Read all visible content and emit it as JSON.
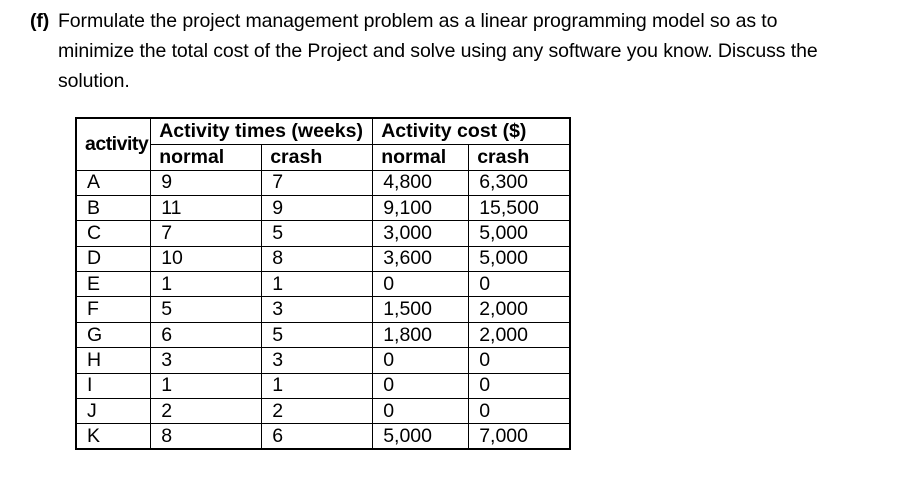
{
  "colors": {
    "background": "#ffffff",
    "text": "#000000",
    "table_border": "#000000"
  },
  "problem": {
    "label": "(f)",
    "lines": [
      "Formulate the project management problem as a linear programming model so as to",
      "minimize the total cost of the Project and solve using any software you know. Discuss the",
      "solution."
    ]
  },
  "table": {
    "corner_header": "activity",
    "group_headers": [
      "Activity times (weeks)",
      "Activity cost ($)"
    ],
    "sub_headers": [
      "normal",
      "crash",
      "normal",
      "crash"
    ],
    "rows": [
      {
        "activity": "A",
        "time_normal": "9",
        "time_crash": "7",
        "cost_normal": "4,800",
        "cost_crash": "6,300"
      },
      {
        "activity": "B",
        "time_normal": "11",
        "time_crash": "9",
        "cost_normal": "9,100",
        "cost_crash": "15,500"
      },
      {
        "activity": "C",
        "time_normal": "7",
        "time_crash": "5",
        "cost_normal": "3,000",
        "cost_crash": "5,000"
      },
      {
        "activity": "D",
        "time_normal": "10",
        "time_crash": "8",
        "cost_normal": "3,600",
        "cost_crash": "5,000"
      },
      {
        "activity": "E",
        "time_normal": "1",
        "time_crash": "1",
        "cost_normal": "0",
        "cost_crash": "0"
      },
      {
        "activity": "F",
        "time_normal": "5",
        "time_crash": "3",
        "cost_normal": "1,500",
        "cost_crash": "2,000"
      },
      {
        "activity": "G",
        "time_normal": "6",
        "time_crash": "5",
        "cost_normal": "1,800",
        "cost_crash": "2,000"
      },
      {
        "activity": "H",
        "time_normal": "3",
        "time_crash": "3",
        "cost_normal": "0",
        "cost_crash": "0"
      },
      {
        "activity": "I",
        "time_normal": "1",
        "time_crash": "1",
        "cost_normal": "0",
        "cost_crash": "0"
      },
      {
        "activity": "J",
        "time_normal": "2",
        "time_crash": "2",
        "cost_normal": "0",
        "cost_crash": "0"
      },
      {
        "activity": "K",
        "time_normal": "8",
        "time_crash": "6",
        "cost_normal": "5,000",
        "cost_crash": "7,000"
      }
    ]
  }
}
